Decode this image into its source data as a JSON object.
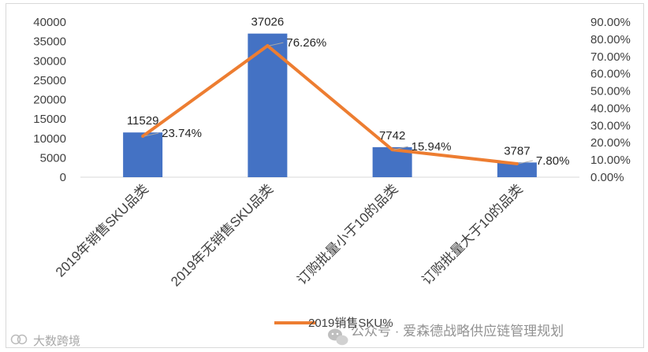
{
  "chart_data": {
    "type": "bar",
    "categories": [
      "2019年销售SKU品类",
      "2019年无销售SKU品类",
      "订购批量小于10的品类",
      "订购批量大于10的品类"
    ],
    "bar_series": {
      "values": [
        11529,
        37026,
        7742,
        3787
      ],
      "labels": [
        "11529",
        "37026",
        "7742",
        "3787"
      ],
      "color": "#4472c4"
    },
    "line_series": {
      "name": "2019销售SKU%",
      "values": [
        23.74,
        76.26,
        15.94,
        7.8
      ],
      "labels": [
        "23.74%",
        "76.26%",
        "15.94%",
        "7.80%"
      ],
      "color": "#ed7d31"
    },
    "y_left": {
      "min": 0,
      "max": 40000,
      "ticks": [
        "0",
        "5000",
        "10000",
        "15000",
        "20000",
        "25000",
        "30000",
        "35000",
        "40000"
      ]
    },
    "y_right": {
      "min": 0,
      "max": 90,
      "ticks": [
        "0.00%",
        "10.00%",
        "20.00%",
        "30.00%",
        "40.00%",
        "50.00%",
        "60.00%",
        "70.00%",
        "80.00%",
        "90.00%"
      ]
    },
    "grid": false,
    "legend": "bottom"
  },
  "watermark": {
    "icon": "wechat-icon",
    "text": "公众号 · 爱森德战略供应链管理规划",
    "corner_text": "大数跨境"
  }
}
